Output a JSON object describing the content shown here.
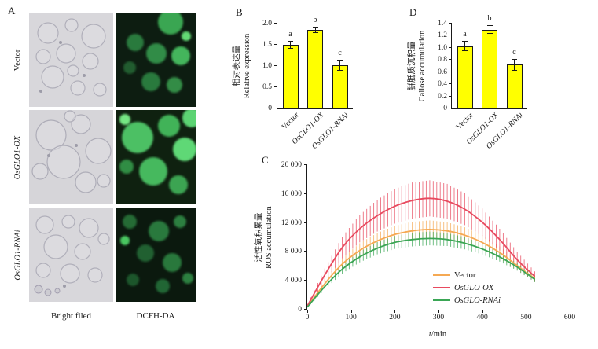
{
  "panel_a": {
    "label": "A",
    "rows": [
      {
        "label": "Vector"
      },
      {
        "label": "OsGLO1-OX"
      },
      {
        "label": "OsGLO1-RNAi"
      }
    ],
    "col_labels": [
      "Bright filed",
      "DCFH-DA"
    ],
    "fluorescence_color": "#3fae57"
  },
  "chart_data": [
    {
      "type": "bar",
      "panel_label": "B",
      "ylabel_zh": "相对表达量",
      "ylabel_en": "Relative expression",
      "categories": [
        "Vector",
        "OsGLO1-OX",
        "OsGLO1-RNAi"
      ],
      "values": [
        1.5,
        1.85,
        1.02
      ],
      "errors": [
        0.1,
        0.08,
        0.13
      ],
      "letters": [
        "a",
        "b",
        "c"
      ],
      "ylim": [
        0,
        2.0
      ],
      "yticks": [
        "0",
        "0.5",
        "1.0",
        "1.5",
        "2.0"
      ],
      "bar_color": "#ffff00"
    },
    {
      "type": "line",
      "panel_label": "C",
      "ylabel_zh": "活性氧积累量",
      "ylabel_en": "ROS accumulation",
      "xlabel_var": "t",
      "xlabel_unit": "/min",
      "xlim": [
        0,
        600
      ],
      "ylim": [
        0,
        20000
      ],
      "xticks": [
        "0",
        "100",
        "200",
        "300",
        "400",
        "500",
        "600"
      ],
      "yticks": [
        "0",
        "4 000",
        "8 000",
        "12 000",
        "16 000",
        "20 000"
      ],
      "x": [
        0,
        40,
        80,
        120,
        160,
        200,
        240,
        280,
        320,
        360,
        400,
        440,
        480,
        520
      ],
      "series": [
        {
          "name": "Vector",
          "color": "#f5a953",
          "y": [
            400,
            3600,
            6300,
            8200,
            9500,
            10400,
            10900,
            11100,
            10900,
            10300,
            9300,
            7900,
            6100,
            4300
          ],
          "err": [
            150,
            500,
            800,
            1000,
            1100,
            1200,
            1250,
            1250,
            1200,
            1100,
            1000,
            850,
            650,
            450
          ]
        },
        {
          "name": "OsGLO-OX",
          "color": "#e84a5f",
          "y": [
            500,
            4800,
            8600,
            11200,
            13000,
            14300,
            15100,
            15400,
            15000,
            13900,
            12100,
            9700,
            6900,
            4600
          ],
          "err": [
            200,
            900,
            1500,
            1900,
            2200,
            2400,
            2500,
            2500,
            2400,
            2200,
            1900,
            1500,
            1100,
            700
          ]
        },
        {
          "name": "OsGLO-RNAi",
          "color": "#3aa655",
          "y": [
            350,
            3200,
            5600,
            7300,
            8500,
            9300,
            9700,
            9850,
            9700,
            9200,
            8400,
            7300,
            5900,
            4200
          ],
          "err": [
            120,
            400,
            600,
            750,
            850,
            900,
            950,
            950,
            900,
            850,
            750,
            650,
            500,
            380
          ]
        }
      ]
    },
    {
      "type": "bar",
      "panel_label": "D",
      "ylabel_zh": "胼胝质沉积量",
      "ylabel_en": "Callose accumulation",
      "categories": [
        "Vector",
        "OsGLO1-OX",
        "OsGLO1-RNAi"
      ],
      "values": [
        1.03,
        1.3,
        0.72
      ],
      "errors": [
        0.08,
        0.07,
        0.1
      ],
      "letters": [
        "a",
        "b",
        "c"
      ],
      "ylim": [
        0,
        1.4
      ],
      "yticks": [
        "0",
        "0.2",
        "0.4",
        "0.6",
        "0.8",
        "1.0",
        "1.2",
        "1.4"
      ],
      "bar_color": "#ffff00"
    }
  ]
}
